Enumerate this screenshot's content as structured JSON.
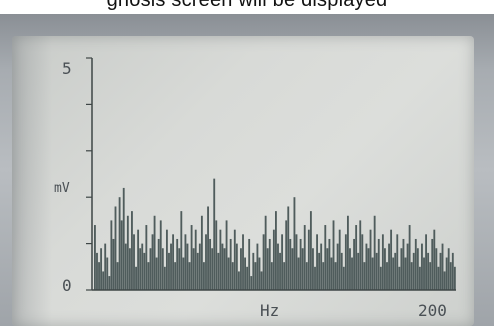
{
  "caption": "gnosis screen will be displayed",
  "chart_data": {
    "type": "bar",
    "ylabel": "mV",
    "xlabel": "Hz",
    "ylim": [
      0,
      5
    ],
    "xlim": [
      0,
      200
    ],
    "yticks": [
      "5",
      "0"
    ],
    "xticks": [
      "200"
    ],
    "bar_color": "#4f5c5c",
    "values": [
      1.4,
      0.8,
      0.6,
      0.9,
      0.4,
      1.0,
      0.7,
      0.3,
      1.5,
      1.1,
      1.8,
      0.6,
      2.0,
      1.5,
      2.2,
      1.0,
      1.6,
      0.9,
      1.7,
      1.2,
      0.5,
      1.3,
      0.9,
      1.0,
      0.8,
      1.4,
      0.6,
      0.9,
      1.2,
      1.6,
      0.7,
      1.1,
      1.5,
      0.9,
      0.5,
      1.3,
      0.8,
      1.0,
      1.2,
      0.6,
      1.1,
      0.9,
      1.7,
      0.7,
      1.2,
      1.0,
      0.6,
      1.4,
      0.9,
      1.3,
      0.8,
      1.0,
      1.6,
      0.6,
      1.2,
      1.8,
      1.1,
      0.9,
      2.4,
      1.5,
      0.8,
      1.3,
      1.0,
      0.9,
      1.5,
      0.7,
      1.1,
      0.6,
      1.3,
      1.0,
      0.4,
      0.9,
      1.2,
      0.7,
      0.5,
      1.1,
      0.3,
      0.8,
      0.6,
      1.0,
      0.7,
      0.4,
      1.2,
      1.6,
      0.9,
      1.1,
      0.6,
      1.3,
      1.7,
      1.0,
      0.8,
      1.2,
      0.6,
      1.5,
      1.8,
      1.1,
      0.9,
      2.0,
      1.2,
      0.7,
      1.1,
      0.9,
      1.4,
      0.6,
      1.3,
      1.7,
      0.9,
      0.5,
      1.2,
      0.8,
      1.0,
      0.6,
      1.4,
      0.9,
      1.1,
      0.7,
      1.5,
      0.6,
      1.0,
      1.3,
      0.8,
      0.5,
      1.2,
      1.6,
      0.9,
      0.7,
      1.1,
      1.4,
      0.8,
      1.5,
      1.2,
      0.6,
      1.0,
      0.9,
      1.3,
      0.7,
      1.6,
      0.8,
      1.1,
      0.5,
      1.2,
      0.9,
      0.6,
      1.0,
      1.3,
      0.7,
      0.8,
      1.2,
      0.5,
      0.9,
      1.1,
      0.7,
      1.0,
      1.4,
      0.6,
      0.8,
      1.1,
      0.9,
      0.5,
      1.0,
      0.7,
      1.2,
      0.8,
      0.6,
      1.1,
      1.3,
      0.9,
      0.5,
      0.8,
      1.0,
      0.4,
      0.7,
      0.9,
      0.6,
      0.8,
      0.5
    ]
  }
}
